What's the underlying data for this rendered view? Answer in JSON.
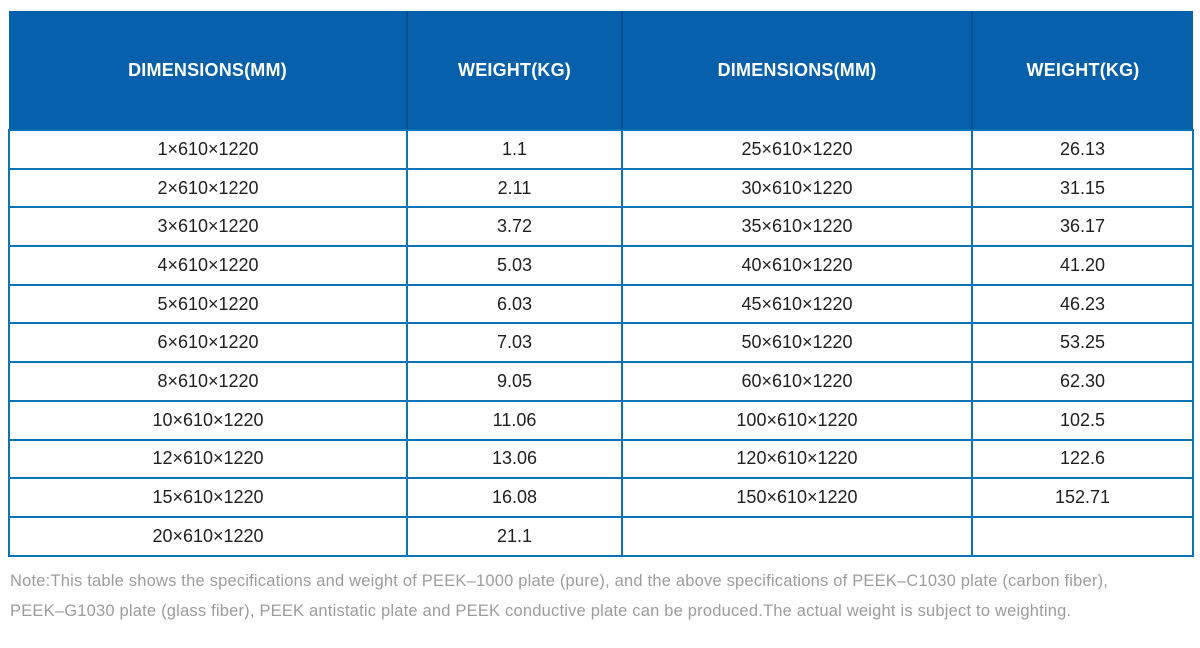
{
  "table": {
    "headers": [
      "DIMENSIONS(MM)",
      "WEIGHT(KG)",
      "DIMENSIONS(MM)",
      "WEIGHT(KG)"
    ],
    "rows": [
      [
        "1×610×1220",
        "1.1",
        "25×610×1220",
        "26.13"
      ],
      [
        "2×610×1220",
        "2.11",
        "30×610×1220",
        "31.15"
      ],
      [
        "3×610×1220",
        "3.72",
        "35×610×1220",
        "36.17"
      ],
      [
        "4×610×1220",
        "5.03",
        "40×610×1220",
        "41.20"
      ],
      [
        "5×610×1220",
        "6.03",
        "45×610×1220",
        "46.23"
      ],
      [
        "6×610×1220",
        "7.03",
        "50×610×1220",
        "53.25"
      ],
      [
        "8×610×1220",
        "9.05",
        "60×610×1220",
        "62.30"
      ],
      [
        "10×610×1220",
        "11.06",
        "100×610×1220",
        "102.5"
      ],
      [
        "12×610×1220",
        "13.06",
        "120×610×1220",
        "122.6"
      ],
      [
        "15×610×1220",
        "16.08",
        "150×610×1220",
        "152.71"
      ],
      [
        "20×610×1220",
        "21.1",
        "",
        ""
      ]
    ]
  },
  "note": {
    "line1": "Note:This table shows the specifications and weight of PEEK–1000 plate (pure), and the above specifications of PEEK–C1030 plate (carbon fiber),",
    "line2": "PEEK–G1030 plate (glass fiber), PEEK antistatic plate and PEEK conductive plate can be produced.The actual weight is subject to weighting."
  },
  "colors": {
    "header_bg": "#0760ab",
    "header_divider": "#084e90",
    "grid_border": "#0b73b7",
    "header_text": "#ffffff",
    "body_text": "#1f1f1f",
    "note_text": "#9c9c9c"
  }
}
